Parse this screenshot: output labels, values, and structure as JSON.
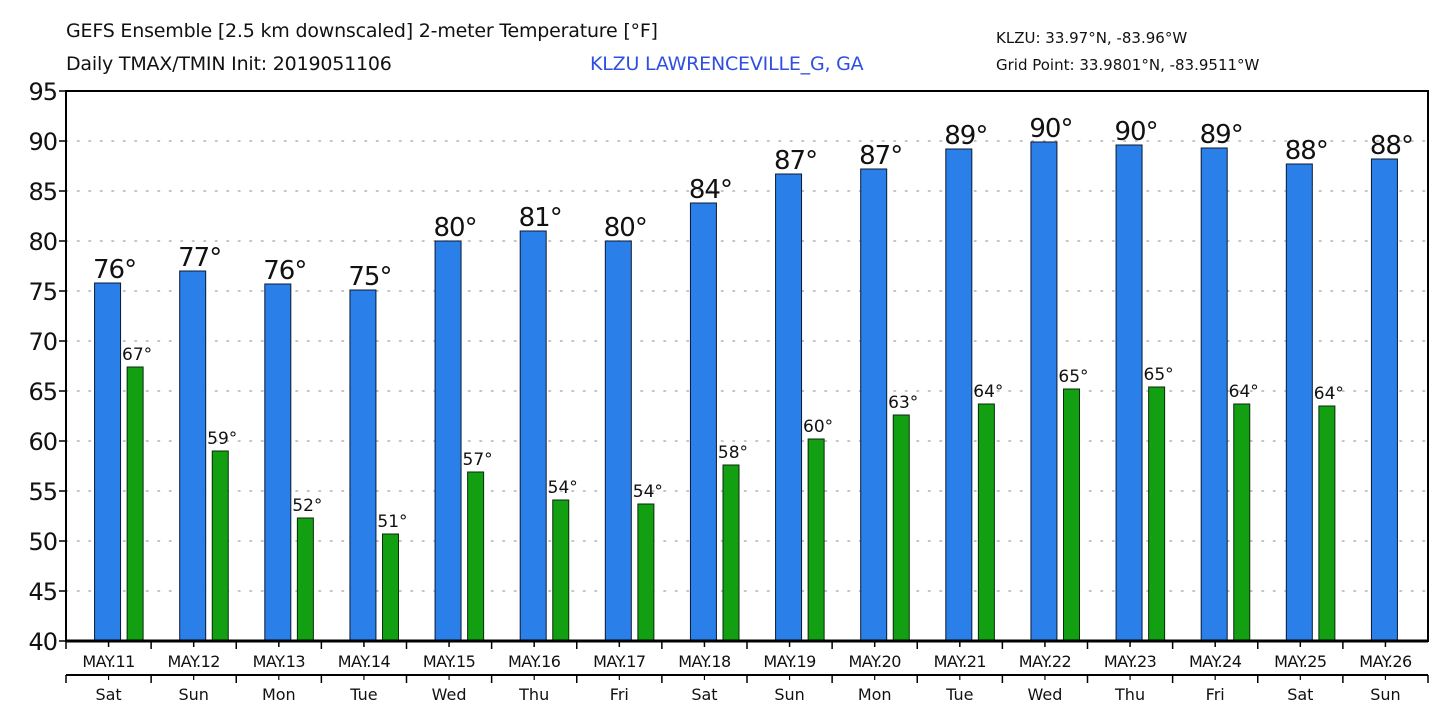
{
  "header": {
    "title_line1": "GEFS Ensemble [2.5 km downscaled] 2-meter Temperature [°F]",
    "title_line2": "Daily TMAX/TMIN Init: 2019051106",
    "station": "KLZU LAWRENCEVILLE_G, GA",
    "station_color": "#2f4fe0",
    "station_coords": "KLZU: 33.97°N, -83.96°W",
    "grid_point": "Grid Point: 33.9801°N, -83.9511°W"
  },
  "chart_data": {
    "type": "bar",
    "title": "GEFS Ensemble [2.5 km downscaled] 2-meter Temperature [°F]",
    "subtitle": "Daily TMAX/TMIN Init: 2019051106",
    "xlabel": "",
    "ylabel": "",
    "ylim": [
      40,
      95
    ],
    "yticks": [
      40,
      45,
      50,
      55,
      60,
      65,
      70,
      75,
      80,
      85,
      90,
      95
    ],
    "grid": true,
    "categories": [
      "MAY.11",
      "MAY.12",
      "MAY.13",
      "MAY.14",
      "MAY.15",
      "MAY.16",
      "MAY.17",
      "MAY.18",
      "MAY.19",
      "MAY.20",
      "MAY.21",
      "MAY.22",
      "MAY.23",
      "MAY.24",
      "MAY.25",
      "MAY.26"
    ],
    "weekdays": [
      "Sat",
      "Sun",
      "Mon",
      "Tue",
      "Wed",
      "Thu",
      "Fri",
      "Sat",
      "Sun",
      "Mon",
      "Tue",
      "Wed",
      "Thu",
      "Fri",
      "Sat",
      "Sun"
    ],
    "series": [
      {
        "name": "TMAX",
        "color": "#2a7fe8",
        "values": [
          75.8,
          77.0,
          75.7,
          75.1,
          80.0,
          81.0,
          80.0,
          83.8,
          86.7,
          87.2,
          89.2,
          89.9,
          89.6,
          89.3,
          87.7,
          88.2
        ],
        "labels": [
          "76°",
          "77°",
          "76°",
          "75°",
          "80°",
          "81°",
          "80°",
          "84°",
          "87°",
          "87°",
          "89°",
          "90°",
          "90°",
          "89°",
          "88°",
          "88°"
        ]
      },
      {
        "name": "TMIN",
        "color": "#12a012",
        "values": [
          67.4,
          59.0,
          52.3,
          50.7,
          56.9,
          54.1,
          53.7,
          57.6,
          60.2,
          62.6,
          63.7,
          65.2,
          65.4,
          63.7,
          63.5
        ],
        "labels": [
          "67°",
          "59°",
          "52°",
          "51°",
          "57°",
          "54°",
          "54°",
          "58°",
          "60°",
          "63°",
          "64°",
          "65°",
          "65°",
          "64°",
          "64°"
        ]
      }
    ]
  }
}
